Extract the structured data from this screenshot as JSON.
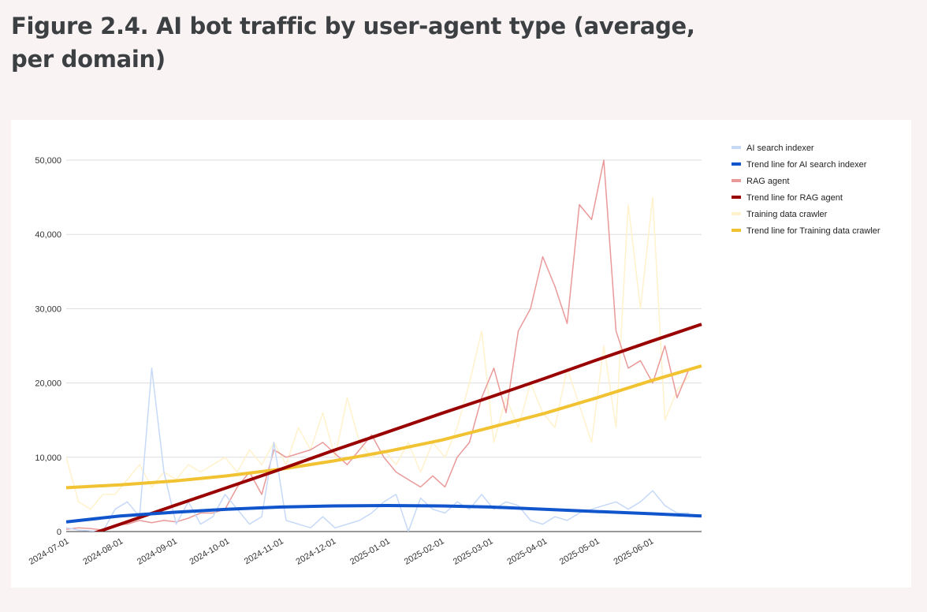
{
  "title": "Figure 2.4. AI bot traffic by user-agent type (average, per domain)",
  "chart_data": {
    "type": "line",
    "title": "Figure 2.4. AI bot traffic by user-agent type (average, per domain)",
    "xlabel": "",
    "ylabel": "",
    "x_start": "2024-07-01",
    "x_end": "2025-06-30",
    "step_days": 7,
    "ylim": [
      0,
      52000
    ],
    "yticks": [
      "0",
      "10,000",
      "20,000",
      "30,000",
      "40,000",
      "50,000"
    ],
    "ytick_values": [
      0,
      10000,
      20000,
      30000,
      40000,
      50000
    ],
    "xticks": [
      "2024-07-01",
      "2024-08-01",
      "2024-09-01",
      "2024-10-01",
      "2024-11-01",
      "2024-12-01",
      "2025-01-01",
      "2025-02-01",
      "2025-03-01",
      "2025-04-01",
      "2025-05-01",
      "2025-06-01"
    ],
    "grid": true,
    "legend_position": "right",
    "trend_days": [
      0,
      31,
      62,
      92,
      123,
      153,
      184,
      215,
      243,
      274,
      304,
      335,
      364
    ],
    "series": [
      {
        "name": "AI search indexer",
        "color": "#c6d9f7",
        "width": 1.5,
        "values": [
          500,
          200,
          100,
          0,
          3000,
          4000,
          2000,
          22000,
          8000,
          1000,
          4000,
          1000,
          2000,
          5000,
          3000,
          1000,
          2000,
          12000,
          1500,
          1000,
          500,
          2000,
          500,
          1000,
          1500,
          2500,
          4000,
          5000,
          0,
          4500,
          3000,
          2500,
          4000,
          3000,
          5000,
          3000,
          4000,
          3500,
          1500,
          1000,
          2000,
          1500,
          2500,
          3000,
          3500,
          4000,
          3000,
          4000,
          5500,
          3500,
          2500,
          2500
        ]
      },
      {
        "name": "Trend line for AI search indexer",
        "color": "#1155cc",
        "width": 4,
        "trend": true,
        "values": [
          1300,
          2100,
          2600,
          3000,
          3300,
          3450,
          3500,
          3450,
          3300,
          3000,
          2700,
          2400,
          2100
        ]
      },
      {
        "name": "RAG agent",
        "color": "#ea9999",
        "width": 1.5,
        "values": [
          300,
          500,
          400,
          200,
          900,
          1000,
          1500,
          1200,
          1500,
          1300,
          1800,
          2500,
          2500,
          3000,
          6000,
          8000,
          5000,
          11000,
          10000,
          10500,
          11000,
          12000,
          10500,
          9000,
          11000,
          13000,
          10000,
          8000,
          7000,
          6000,
          7500,
          6000,
          10000,
          12000,
          18000,
          22000,
          16000,
          27000,
          30000,
          37000,
          33000,
          28000,
          44000,
          42000,
          50000,
          27000,
          22000,
          23000,
          20000,
          25000,
          18000,
          22000
        ]
      },
      {
        "name": "Trend line for RAG agent",
        "color": "#990000",
        "width": 4,
        "trend": true,
        "values": [
          -1500,
          1000,
          3500,
          5900,
          8400,
          10900,
          13400,
          15900,
          18100,
          20600,
          23100,
          25600,
          27900
        ]
      },
      {
        "name": "Training data crawler",
        "color": "#fff2cc",
        "width": 1.5,
        "values": [
          10000,
          4000,
          3000,
          5000,
          5000,
          7000,
          9000,
          6000,
          8000,
          7000,
          9000,
          8000,
          9000,
          10000,
          8000,
          11000,
          9000,
          12000,
          9000,
          14000,
          11000,
          16000,
          10000,
          18000,
          12000,
          10000,
          11000,
          9000,
          12000,
          8000,
          12000,
          10000,
          14000,
          20000,
          27000,
          12000,
          18000,
          14000,
          20000,
          16000,
          14000,
          22000,
          17000,
          12000,
          25000,
          14000,
          44000,
          30000,
          45000,
          15000,
          19000,
          21000
        ]
      },
      {
        "name": "Trend line for Training data crawler",
        "color": "#f1c232",
        "width": 4,
        "trend": true,
        "values": [
          5900,
          6300,
          6800,
          7500,
          8400,
          9500,
          10800,
          12300,
          14000,
          15900,
          18000,
          20300,
          22300
        ]
      }
    ]
  }
}
